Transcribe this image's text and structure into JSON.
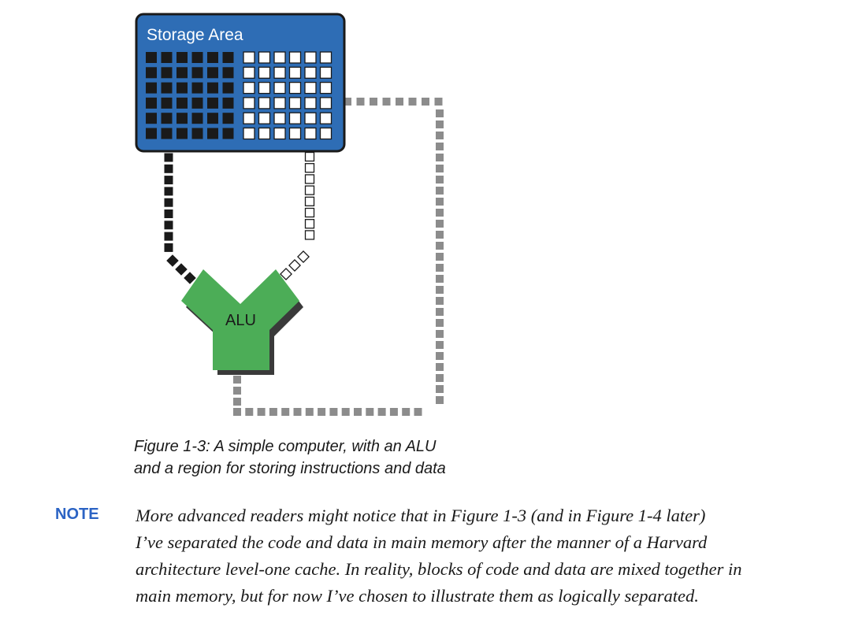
{
  "figure": {
    "storage_title": "Storage Area",
    "alu_label": "ALU",
    "colors": {
      "storage_fill": "#2e6db5",
      "storage_border": "#1a1a1a",
      "code_cell": "#1a1a1a",
      "data_cell": "#ffffff",
      "alu_fill": "#4cad57",
      "bus_gray": "#8c8c8c"
    },
    "caption_lines": [
      "Figure 1-3: A simple computer, with an ALU",
      "and a region for storing instructions and data"
    ]
  },
  "note": {
    "label": "NOTE",
    "lines": [
      "More advanced readers might notice that in Figure 1-3 (and in Figure 1-4 later)",
      "I’ve separated the code and data in main memory after the manner of a Harvard",
      "architecture level-one cache. In reality, blocks of code and data are mixed together in",
      "main memory, but for now I’ve chosen to illustrate them as logically separated."
    ],
    "label_color": "#2b63c4"
  }
}
